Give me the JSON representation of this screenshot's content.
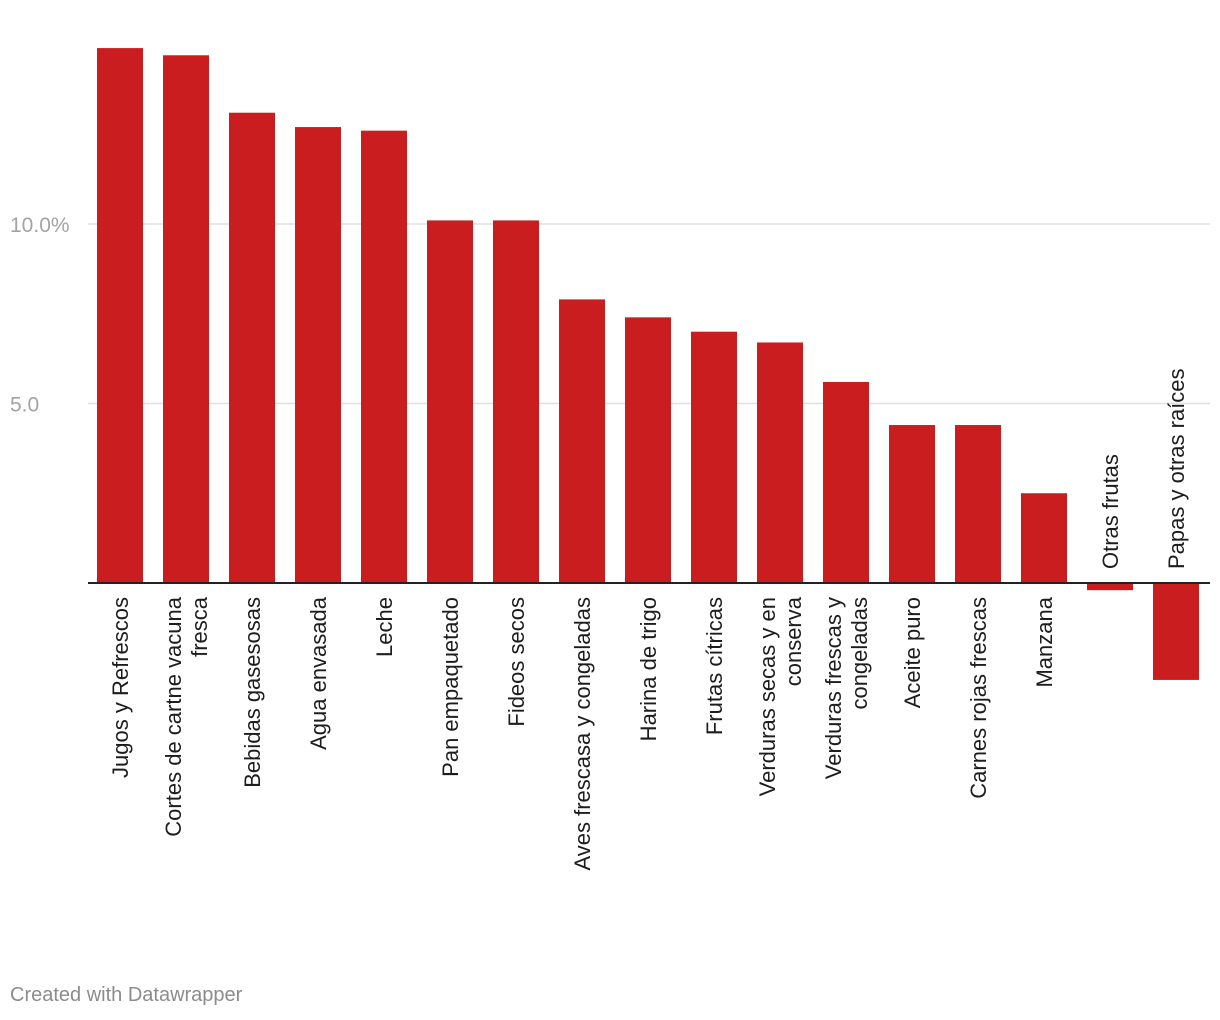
{
  "chart_data": {
    "type": "bar",
    "categories": [
      "Jugos y Refrescos",
      "Cortes de cartne vacuna fresca",
      "Bebidas gasesosas",
      "Agua envasada",
      "Leche",
      "Pan empaquetado",
      "Fideos secos",
      "Aves frescasa y congeladas",
      "Harina de trigo",
      "Frutas cítricas",
      "Verduras secas y en conserva",
      "Verduras frescas y congeladas",
      "Aceite puro",
      "Carnes rojas frescas",
      "Manzana",
      "Otras frutas",
      "Papas y otras raíces"
    ],
    "category_label_lines": [
      [
        "Jugos y Refrescos"
      ],
      [
        "Cortes de cartne vacuna",
        "fresca"
      ],
      [
        "Bebidas gasesosas"
      ],
      [
        "Agua envasada"
      ],
      [
        "Leche"
      ],
      [
        "Pan empaquetado"
      ],
      [
        "Fideos secos"
      ],
      [
        "Aves frescasa y congeladas"
      ],
      [
        "Harina de trigo"
      ],
      [
        "Frutas cítricas"
      ],
      [
        "Verduras secas y en",
        "conserva"
      ],
      [
        "Verduras frescas y",
        "congeladas"
      ],
      [
        "Aceite puro"
      ],
      [
        "Carnes rojas frescas"
      ],
      [
        "Manzana"
      ],
      [
        "Otras frutas"
      ],
      [
        "Papas y otras raíces"
      ]
    ],
    "values": [
      14.9,
      14.7,
      13.1,
      12.7,
      12.6,
      10.1,
      10.1,
      7.9,
      7.4,
      7.0,
      6.7,
      5.6,
      4.4,
      4.4,
      2.5,
      -0.2,
      -2.7
    ],
    "ylim": [
      -2.7,
      14.9
    ],
    "yticks": [
      {
        "value": 5,
        "label": "5.0"
      },
      {
        "value": 10,
        "label": "10.0%"
      }
    ],
    "bar_color": "#c91d1f",
    "grid": true,
    "title": "",
    "xlabel": "",
    "ylabel": ""
  },
  "footer": {
    "credit": "Created with Datawrapper"
  }
}
